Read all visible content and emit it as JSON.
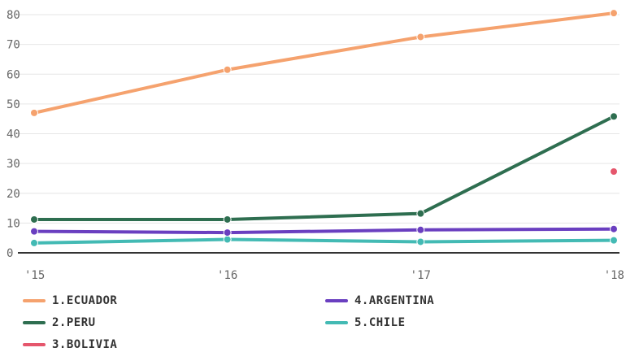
{
  "chart_data": {
    "type": "line",
    "x": [
      "'15",
      "'16",
      "'17",
      "'18"
    ],
    "ylim": [
      0,
      80
    ],
    "yticks": [
      0,
      10,
      20,
      30,
      40,
      50,
      60,
      70,
      80
    ],
    "grid": true,
    "legend_position": "bottom",
    "series": [
      {
        "name": "1.ECUADOR",
        "color": "#f5a26e",
        "values": [
          47,
          61.5,
          72.5,
          80.5
        ]
      },
      {
        "name": "2.PERU",
        "color": "#2e6e50",
        "values": [
          11.2,
          11.2,
          13.2,
          45.8
        ]
      },
      {
        "name": "3.BOLIVIA",
        "color": "#e5566c",
        "values": [
          null,
          null,
          null,
          27.3
        ]
      },
      {
        "name": "4.ARGENTINA",
        "color": "#6a3fc0",
        "values": [
          7.2,
          6.8,
          7.7,
          8.0
        ]
      },
      {
        "name": "5.CHILE",
        "color": "#43bab4",
        "values": [
          3.3,
          4.5,
          3.7,
          4.2
        ]
      }
    ]
  }
}
